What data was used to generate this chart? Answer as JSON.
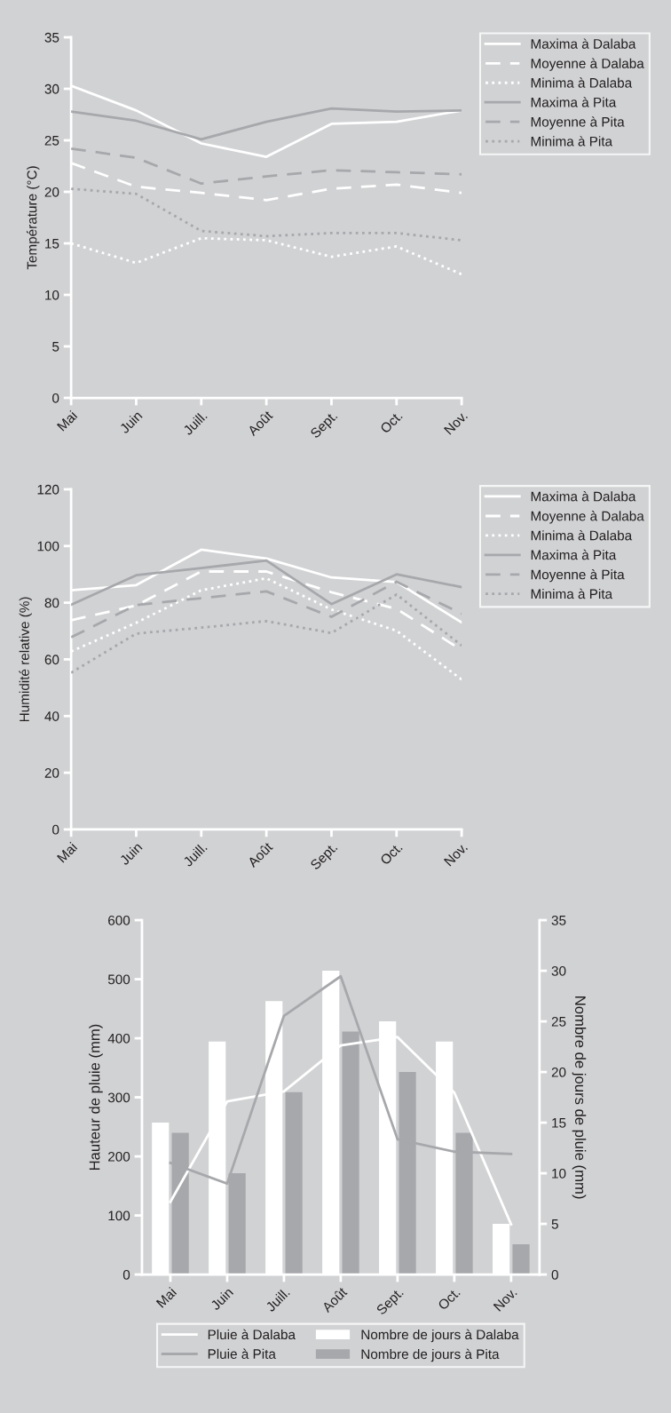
{
  "chart_data": [
    {
      "type": "line",
      "ylabel": "Température (°C)",
      "categories": [
        "Mai",
        "Juin",
        "Juill.",
        "Août",
        "Sept.",
        "Oct.",
        "Nov."
      ],
      "ylim": [
        0,
        35
      ],
      "yticks": [
        0,
        5,
        10,
        15,
        20,
        25,
        30,
        35
      ],
      "grid": false,
      "legend": "right",
      "series": [
        {
          "name": "Maxima à Dalaba",
          "color": "#ffffff",
          "line_style": "solid",
          "values": [
            30.3,
            27.9,
            24.7,
            23.4,
            26.6,
            26.8,
            27.9
          ]
        },
        {
          "name": "Moyenne à Dalaba",
          "color": "#ffffff",
          "line_style": "dashed",
          "values": [
            22.8,
            20.5,
            19.9,
            19.2,
            20.3,
            20.7,
            19.9
          ]
        },
        {
          "name": "Minima à Dalaba",
          "color": "#ffffff",
          "line_style": "dotted",
          "values": [
            15.0,
            13.1,
            15.5,
            15.3,
            13.7,
            14.7,
            12.0
          ]
        },
        {
          "name": "Maxima à Pita",
          "color": "#a7a8ab",
          "line_style": "solid",
          "values": [
            27.8,
            26.9,
            25.1,
            26.8,
            28.1,
            27.8,
            27.9
          ]
        },
        {
          "name": "Moyenne à Pita",
          "color": "#a7a8ab",
          "line_style": "dashed",
          "values": [
            24.2,
            23.3,
            20.8,
            21.5,
            22.1,
            21.9,
            21.7
          ]
        },
        {
          "name": "Minima à Pita",
          "color": "#a7a8ab",
          "line_style": "dotted",
          "values": [
            20.3,
            19.8,
            16.2,
            15.7,
            16.0,
            16.0,
            15.3
          ]
        }
      ]
    },
    {
      "type": "line",
      "ylabel": "Humidité relative (%)",
      "categories": [
        "Mai",
        "Juin",
        "Juill.",
        "Août",
        "Sept.",
        "Oct.",
        "Nov."
      ],
      "ylim": [
        0,
        120
      ],
      "yticks": [
        0,
        20,
        40,
        60,
        80,
        100,
        120
      ],
      "grid": false,
      "legend": "right",
      "series": [
        {
          "name": "Maxima à Dalaba",
          "color": "#ffffff",
          "line_style": "solid",
          "values": [
            84.4,
            86.2,
            98.7,
            95.6,
            88.9,
            87.3,
            73.0
          ]
        },
        {
          "name": "Moyenne à Dalaba",
          "color": "#ffffff",
          "line_style": "dashed",
          "values": [
            73.8,
            79.0,
            91.0,
            91.0,
            83.7,
            77.8,
            63.3
          ]
        },
        {
          "name": "Minima à Dalaba",
          "color": "#ffffff",
          "line_style": "dotted",
          "values": [
            62.8,
            72.9,
            84.4,
            88.6,
            77.6,
            70.1,
            52.9
          ]
        },
        {
          "name": "Maxima à Pita",
          "color": "#a7a8ab",
          "line_style": "solid",
          "values": [
            79.3,
            89.7,
            92.2,
            94.9,
            79.5,
            90.0,
            85.5
          ]
        },
        {
          "name": "Moyenne à Pita",
          "color": "#a7a8ab",
          "line_style": "dashed",
          "values": [
            67.8,
            79.2,
            81.6,
            84.0,
            75.0,
            87.4,
            76.1
          ]
        },
        {
          "name": "Minima à Pita",
          "color": "#a7a8ab",
          "line_style": "dotted",
          "values": [
            55.3,
            69.1,
            71.2,
            73.5,
            69.3,
            82.9,
            64.9
          ]
        }
      ]
    },
    {
      "type": "bar",
      "ylabel": "Hauteur de pluie (mm)",
      "y2label": "Nombre de jours de pluie (mm)",
      "categories": [
        "Mai",
        "Juin",
        "Juill.",
        "Août",
        "Sept.",
        "Oct.",
        "Nov."
      ],
      "ylim": [
        0,
        600
      ],
      "yticks": [
        0,
        100,
        200,
        300,
        400,
        500,
        600
      ],
      "y2lim": [
        0,
        35
      ],
      "y2ticks": [
        0,
        5,
        10,
        15,
        20,
        25,
        30,
        35
      ],
      "grid": false,
      "legend": "bottom",
      "series": [
        {
          "name": "Pluie à Dalaba",
          "type": "line",
          "color": "#ffffff",
          "values": [
            123,
            293,
            310,
            388,
            402,
            308,
            85
          ]
        },
        {
          "name": "Pluie à Pita",
          "type": "line",
          "color": "#a7a8ab",
          "values": [
            189,
            154,
            438,
            505,
            229,
            208,
            204
          ]
        },
        {
          "name": "Nombre de jours à Dalaba",
          "type": "bar",
          "axis": "y2",
          "color": "#ffffff",
          "values": [
            15,
            23,
            27,
            30,
            25,
            23,
            5
          ]
        },
        {
          "name": "Nombre de jours à Pita",
          "type": "bar",
          "axis": "y2",
          "color": "#a7a8ab",
          "values": [
            14,
            10,
            18,
            24,
            20,
            14,
            3
          ]
        }
      ]
    }
  ]
}
